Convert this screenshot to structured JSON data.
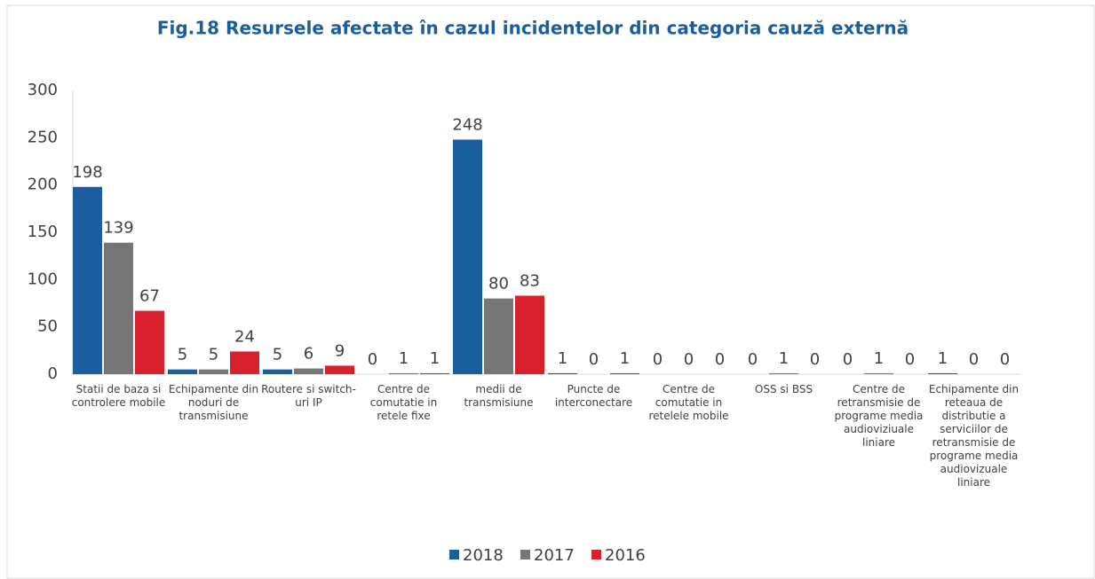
{
  "chart_data": {
    "type": "bar",
    "title": "Fig.18 Resursele afectate în cazul incidentelor din categoria cauză externă",
    "categories": [
      "Statii de baza si controlere mobile",
      "Echipamente din noduri de transmisiune",
      "Routere si switch-uri IP",
      "Centre de comutatie in retele fixe",
      "medii de transmisiune",
      "Puncte de interconectare",
      "Centre de comutatie in retelele mobile",
      "OSS si BSS",
      "Centre de retransmisie de programe media audioviziuale liniare",
      "Echipamente din reteaua de distributie a serviciilor de retransmisie de programe media audiovizuale liniare"
    ],
    "series": [
      {
        "name": "2018",
        "color": "#1b5e9f",
        "values": [
          198,
          5,
          5,
          0,
          248,
          1,
          0,
          0,
          0,
          1
        ]
      },
      {
        "name": "2017",
        "color": "#767676",
        "values": [
          139,
          5,
          6,
          1,
          80,
          0,
          0,
          1,
          1,
          0
        ]
      },
      {
        "name": "2016",
        "color": "#d9202e",
        "values": [
          67,
          24,
          9,
          1,
          83,
          1,
          0,
          0,
          0,
          0
        ]
      }
    ],
    "ylim": [
      0,
      300
    ],
    "yticks": [
      0,
      50,
      100,
      150,
      200,
      250,
      300
    ],
    "grid": false
  }
}
